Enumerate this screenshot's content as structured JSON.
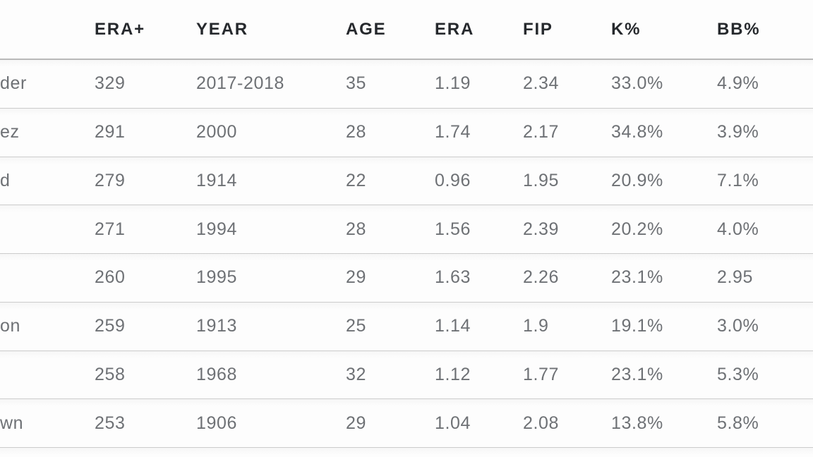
{
  "chart_data": {
    "type": "table",
    "columns": [
      "",
      "ERA+",
      "YEAR",
      "AGE",
      "ERA",
      "FIP",
      "K%",
      "BB%"
    ],
    "rows": [
      [
        "der",
        "329",
        "2017-2018",
        "35",
        "1.19",
        "2.34",
        "33.0%",
        "4.9%"
      ],
      [
        "ez",
        "291",
        "2000",
        "28",
        "1.74",
        "2.17",
        "34.8%",
        "3.9%"
      ],
      [
        "d",
        "279",
        "1914",
        "22",
        "0.96",
        "1.95",
        "20.9%",
        "7.1%"
      ],
      [
        "",
        "271",
        "1994",
        "28",
        "1.56",
        "2.39",
        "20.2%",
        "4.0%"
      ],
      [
        "",
        "260",
        "1995",
        "29",
        "1.63",
        "2.26",
        "23.1%",
        "2.95"
      ],
      [
        "on",
        "259",
        "1913",
        "25",
        "1.14",
        "1.9",
        "19.1%",
        "3.0%"
      ],
      [
        "",
        "258",
        "1968",
        "32",
        "1.12",
        "1.77",
        "23.1%",
        "5.3%"
      ],
      [
        "wn",
        "253",
        "1906",
        "29",
        "1.04",
        "2.08",
        "13.8%",
        "5.8%"
      ]
    ],
    "layout": {
      "legend": "none",
      "grid": "horizontal row dividers only",
      "note": "Leftmost player-name column is cropped at the image edge; only trailing letters of some names are visible"
    }
  },
  "colors": {
    "header_text": "#26292d",
    "data_text": "#6e7175",
    "header_divider": "#b9b9b9",
    "row_divider": "#cccccc",
    "background": "#fdfdfd"
  }
}
